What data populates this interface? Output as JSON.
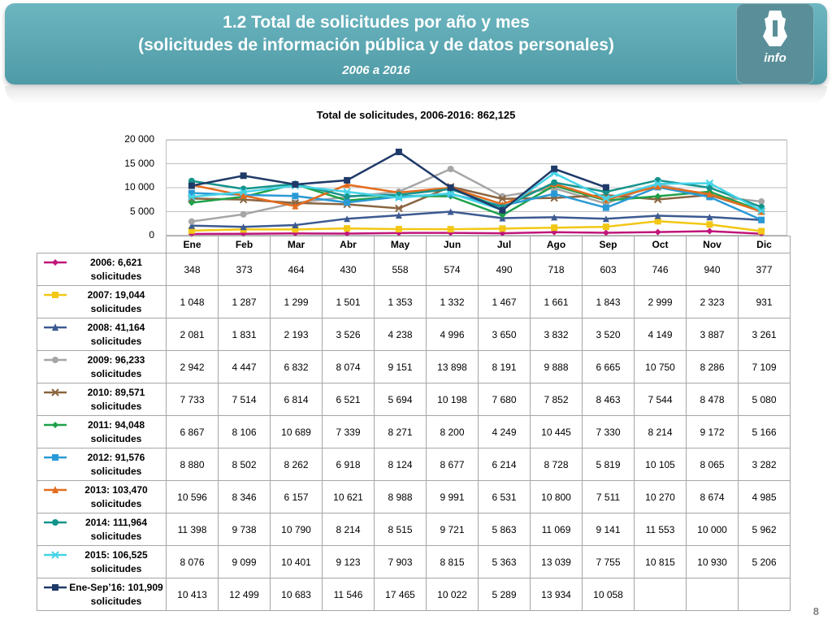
{
  "slide": {
    "title_line1": "1.2 Total de solicitudes por año y mes",
    "title_line2": "(solicitudes de información pública y de datos personales)",
    "subtitle": "2006 a 2016",
    "logo_text": "info",
    "page_number": "8",
    "banner_color": "#5ba7b1"
  },
  "chart_data": {
    "type": "line",
    "title": "Total de solicitudes, 2006-2016: 862,125",
    "categories": [
      "Ene",
      "Feb",
      "Mar",
      "Abr",
      "May",
      "Jun",
      "Jul",
      "Ago",
      "Sep",
      "Oct",
      "Nov",
      "Dic"
    ],
    "ylim": [
      0,
      20000
    ],
    "yticks": [
      "0",
      "5 000",
      "10 000",
      "15 000",
      "20 000"
    ],
    "ytick_values": [
      0,
      5000,
      10000,
      15000,
      20000
    ],
    "grid": true,
    "legend": "data table below chart",
    "series": [
      {
        "name": "2006: 6,621 solicitudes",
        "color": "#c0157a",
        "marker": "diamond",
        "values": [
          348,
          373,
          464,
          430,
          558,
          574,
          490,
          718,
          603,
          746,
          940,
          377
        ],
        "labels": [
          "348",
          "373",
          "464",
          "430",
          "558",
          "574",
          "490",
          "718",
          "603",
          "746",
          "940",
          "377"
        ]
      },
      {
        "name": "2007: 19,044 solicitudes",
        "color": "#f2c715",
        "marker": "square",
        "values": [
          1048,
          1287,
          1299,
          1501,
          1353,
          1332,
          1467,
          1661,
          1843,
          2999,
          2323,
          931
        ],
        "labels": [
          "1 048",
          "1 287",
          "1 299",
          "1 501",
          "1 353",
          "1 332",
          "1 467",
          "1 661",
          "1 843",
          "2 999",
          "2 323",
          "931"
        ]
      },
      {
        "name": "2008: 41,164 solicitudes",
        "color": "#3c5a91",
        "marker": "triangle",
        "values": [
          2081,
          1831,
          2193,
          3526,
          4238,
          4996,
          3650,
          3832,
          3520,
          4149,
          3887,
          3261
        ],
        "labels": [
          "2 081",
          "1 831",
          "2 193",
          "3 526",
          "4 238",
          "4 996",
          "3 650",
          "3 832",
          "3 520",
          "4 149",
          "3 887",
          "3 261"
        ]
      },
      {
        "name": "2009: 96,233 solicitudes",
        "color": "#a6a6a6",
        "marker": "circle",
        "values": [
          2942,
          4447,
          6832,
          8074,
          9151,
          13898,
          8191,
          9888,
          6665,
          10750,
          8286,
          7109
        ],
        "labels": [
          "2 942",
          "4 447",
          "6 832",
          "8 074",
          "9 151",
          "13 898",
          "8 191",
          "9 888",
          "6 665",
          "10 750",
          "8 286",
          "7 109"
        ]
      },
      {
        "name": "2010: 89,571 solicitudes",
        "color": "#8a6540",
        "marker": "star",
        "values": [
          7733,
          7514,
          6814,
          6521,
          5694,
          10198,
          7680,
          7852,
          8463,
          7544,
          8478,
          5080
        ],
        "labels": [
          "7 733",
          "7 514",
          "6 814",
          "6 521",
          "5 694",
          "10 198",
          "7 680",
          "7 852",
          "8 463",
          "7 544",
          "8 478",
          "5 080"
        ]
      },
      {
        "name": "2011: 94,048 solicitudes",
        "color": "#1fa14a",
        "marker": "diamond",
        "values": [
          6867,
          8106,
          10689,
          7339,
          8271,
          8200,
          4249,
          10445,
          7330,
          8214,
          9172,
          5166
        ],
        "labels": [
          "6 867",
          "8 106",
          "10 689",
          "7 339",
          "8 271",
          "8 200",
          "4 249",
          "10 445",
          "7 330",
          "8 214",
          "9 172",
          "5 166"
        ]
      },
      {
        "name": "2012: 91,576 solicitudes",
        "color": "#2a9ad6",
        "marker": "square",
        "values": [
          8880,
          8502,
          8262,
          6918,
          8124,
          8677,
          6214,
          8728,
          5819,
          10105,
          8065,
          3282
        ],
        "labels": [
          "8 880",
          "8 502",
          "8 262",
          "6 918",
          "8 124",
          "8 677",
          "6 214",
          "8 728",
          "5 819",
          "10 105",
          "8 065",
          "3 282"
        ]
      },
      {
        "name": "2013: 103,470 solicitudes",
        "color": "#e46c1e",
        "marker": "triangle",
        "values": [
          10596,
          8346,
          6157,
          10621,
          8988,
          9991,
          6531,
          10800,
          7511,
          10270,
          8674,
          4985
        ],
        "labels": [
          "10 596",
          "8 346",
          "6 157",
          "10 621",
          "8 988",
          "9 991",
          "6 531",
          "10 800",
          "7 511",
          "10 270",
          "8 674",
          "4 985"
        ]
      },
      {
        "name": "2014: 111,964 solicitudes",
        "color": "#14938b",
        "marker": "circle",
        "values": [
          11398,
          9738,
          10790,
          8214,
          8515,
          9721,
          5863,
          11069,
          9141,
          11553,
          10000,
          5962
        ],
        "labels": [
          "11 398",
          "9 738",
          "10 790",
          "8 214",
          "8 515",
          "9 721",
          "5 863",
          "11 069",
          "9 141",
          "11 553",
          "10 000",
          "5 962"
        ]
      },
      {
        "name": "2015: 106,525 solicitudes",
        "color": "#45d3e6",
        "marker": "star",
        "values": [
          8076,
          9099,
          10401,
          9123,
          7903,
          8815,
          5363,
          13039,
          7755,
          10815,
          10930,
          5206
        ],
        "labels": [
          "8 076",
          "9 099",
          "10 401",
          "9 123",
          "7 903",
          "8 815",
          "5 363",
          "13 039",
          "7 755",
          "10 815",
          "10 930",
          "5 206"
        ]
      },
      {
        "name": "Ene-Sep’16: 101,909 solicitudes",
        "color": "#1f3a68",
        "marker": "square",
        "values": [
          10413,
          12499,
          10683,
          11546,
          17465,
          10022,
          5289,
          13934,
          10058,
          null,
          null,
          null
        ],
        "labels": [
          "10 413",
          "12 499",
          "10 683",
          "11 546",
          "17 465",
          "10 022",
          "5 289",
          "13 934",
          "10 058",
          "",
          "",
          ""
        ]
      }
    ]
  }
}
